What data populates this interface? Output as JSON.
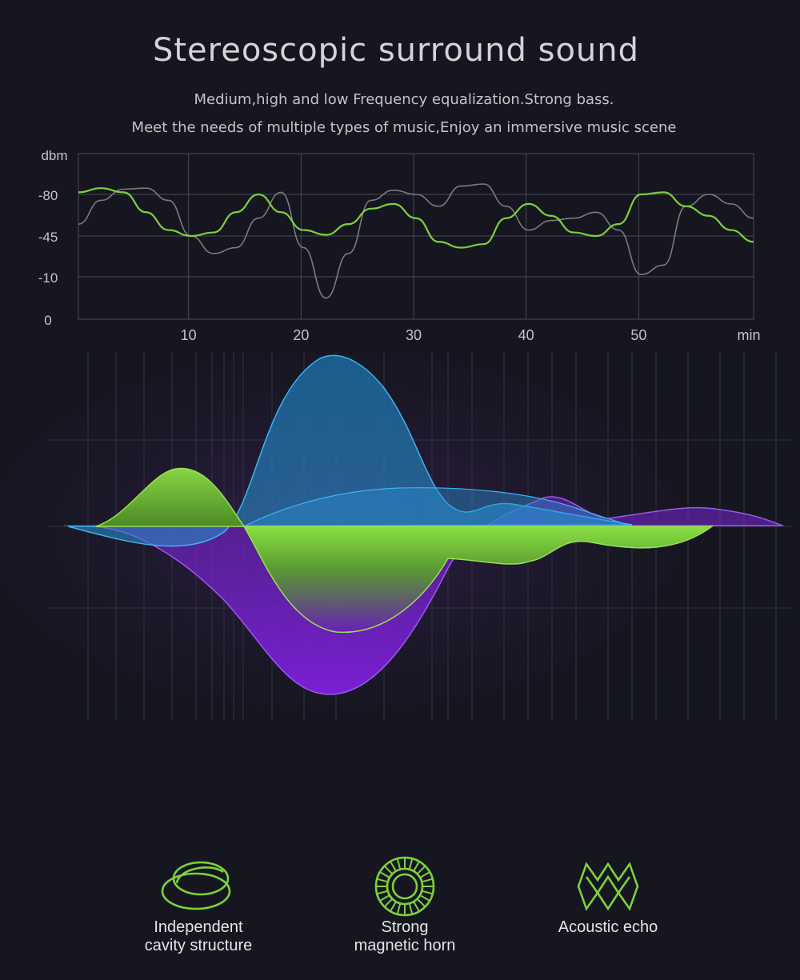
{
  "header": {
    "title": "Stereoscopic surround sound",
    "subtitle_1": "Medium,high and low Frequency equalization.Strong bass.",
    "subtitle_2": "Meet the needs of multiple types of music,Enjoy an immersive music scene"
  },
  "chart_data": {
    "type": "line",
    "ylabel": "dbm",
    "xlabel": "min",
    "x_ticks": [
      10,
      20,
      30,
      40,
      50
    ],
    "y_ticks": [
      0,
      -10,
      -45,
      -80
    ],
    "xlim": [
      0,
      60
    ],
    "grid": true,
    "series": [
      {
        "color": "#7ed13a",
        "x": [
          0,
          2,
          4,
          6,
          8,
          10,
          12,
          14,
          16,
          18,
          20,
          22,
          24,
          26,
          28,
          30,
          32,
          34,
          36,
          38,
          40,
          42,
          44,
          46,
          48,
          50,
          52,
          54,
          56,
          58,
          60
        ],
        "y": [
          -82,
          -86,
          -82,
          -65,
          -50,
          -45,
          -48,
          -65,
          -80,
          -65,
          -50,
          -46,
          -55,
          -68,
          -72,
          -60,
          -40,
          -35,
          -38,
          -60,
          -72,
          -62,
          -48,
          -45,
          -55,
          -80,
          -82,
          -70,
          -62,
          -50,
          -40
        ]
      },
      {
        "color": "#7a7b82",
        "x": [
          0,
          2,
          4,
          6,
          8,
          10,
          12,
          14,
          16,
          18,
          20,
          22,
          24,
          26,
          28,
          30,
          32,
          34,
          36,
          38,
          40,
          42,
          44,
          46,
          48,
          50,
          52,
          54,
          56,
          58,
          60
        ],
        "y": [
          -55,
          -75,
          -85,
          -86,
          -75,
          -45,
          -30,
          -35,
          -60,
          -82,
          -35,
          -5,
          -30,
          -75,
          -84,
          -80,
          -70,
          -88,
          -90,
          -70,
          -50,
          -58,
          -60,
          -65,
          -50,
          -12,
          -20,
          -70,
          -80,
          -72,
          -60
        ]
      }
    ]
  },
  "features": [
    {
      "icon": "cavity-icon",
      "line_1": "Independent",
      "line_2": "cavity structure"
    },
    {
      "icon": "magnetic-horn-icon",
      "line_1": "Strong",
      "line_2": "magnetic horn"
    },
    {
      "icon": "echo-icon",
      "line_1": "",
      "line_2": "Acoustic echo"
    }
  ],
  "colors": {
    "background": "#15161f",
    "green": "#7ed13a",
    "blue": "#2ea2e0",
    "purple": "#7a1fd6",
    "grey_line": "#7a7b82"
  }
}
